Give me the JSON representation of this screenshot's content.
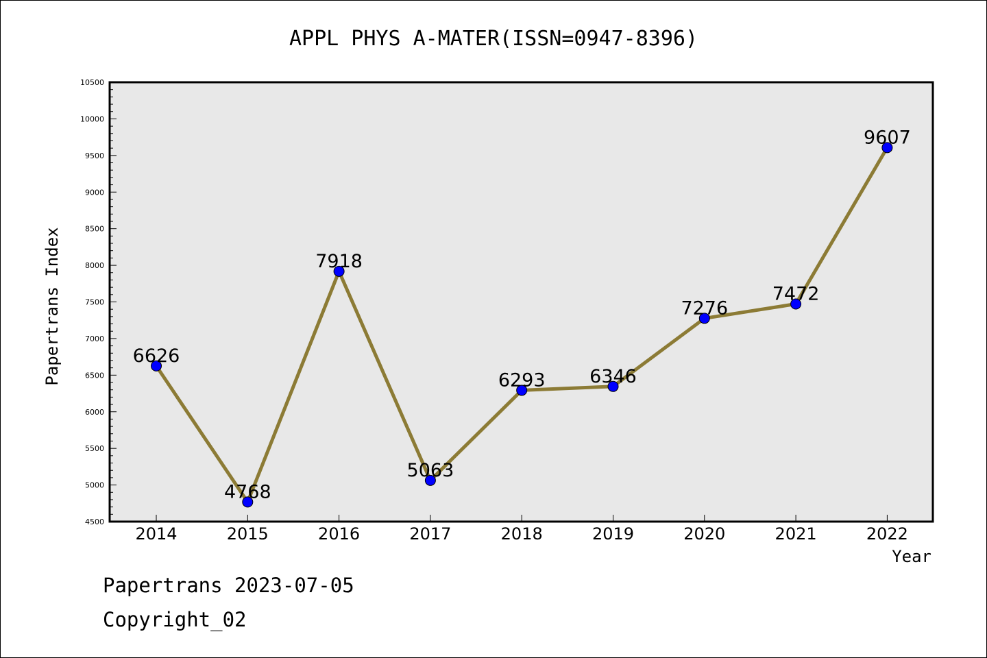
{
  "chart_data": {
    "type": "line",
    "title": "APPL PHYS A-MATER(ISSN=0947-8396)",
    "xlabel": "Year",
    "ylabel": "Papertrans Index",
    "categories": [
      "2014",
      "2015",
      "2016",
      "2017",
      "2018",
      "2019",
      "2020",
      "2021",
      "2022"
    ],
    "values": [
      6626,
      4768,
      7918,
      5063,
      6293,
      6346,
      7276,
      7472,
      9607
    ],
    "data_labels": [
      "6626",
      "4768",
      "7918",
      "5063",
      "6293",
      "6346",
      "7276",
      "7472",
      "9607"
    ],
    "ylim": [
      4500,
      10500
    ],
    "yticks": [
      4500,
      5000,
      5500,
      6000,
      6500,
      7000,
      7500,
      8000,
      8500,
      9000,
      9500,
      10000,
      10500
    ],
    "ytick_labels": [
      "4500",
      "5000",
      "5500",
      "6000",
      "6500",
      "7000",
      "7500",
      "8000",
      "8500",
      "9000",
      "9500",
      "10000",
      "10500"
    ],
    "grid": false,
    "colors": {
      "plot_background": "#e8e8e8",
      "line": "#8c7b35",
      "marker": "#0000ff"
    }
  },
  "footer": {
    "source": "Papertrans 2023-07-05",
    "copyright": "Copyright_02"
  }
}
